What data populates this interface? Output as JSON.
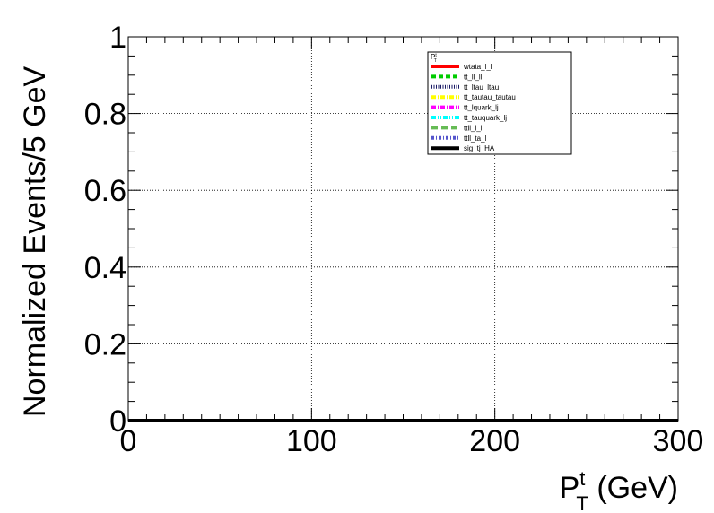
{
  "chart_data": {
    "type": "line",
    "title": "",
    "xlabel": {
      "main": "P",
      "sup": "t",
      "sub": "T",
      "unit": " (GeV)"
    },
    "ylabel": "Normalized Events/5 GeV",
    "xlim": [
      0,
      300
    ],
    "ylim": [
      0,
      1
    ],
    "x_ticks": [
      0,
      100,
      200,
      300
    ],
    "x_tick_labels": [
      "0",
      "100",
      "200",
      "300"
    ],
    "y_ticks": [
      0,
      0.2,
      0.4,
      0.6,
      0.8,
      1
    ],
    "y_tick_labels": [
      "0",
      "0.2",
      "0.4",
      "0.6",
      "0.8",
      "1"
    ],
    "grid": true,
    "legend": {
      "placement": "top-right",
      "header": {
        "main": "P",
        "sup": "t",
        "sub": "T"
      },
      "entries": [
        {
          "name": "wtata_l_l",
          "color": "#ff0000",
          "style": "solid"
        },
        {
          "name": "tt_ll_ll",
          "color": "#00cc00",
          "style": "dashed"
        },
        {
          "name": "tt_ltau_ltau",
          "color": "#1a1a66",
          "style": "dotted"
        },
        {
          "name": "tt_tautau_tautau",
          "color": "#ffff00",
          "style": "dashdot"
        },
        {
          "name": "tt_lquark_lj",
          "color": "#ff00ff",
          "style": "dashdot"
        },
        {
          "name": "tt_tauquark_lj",
          "color": "#00ffff",
          "style": "dashdotdot"
        },
        {
          "name": "ttll_l_l",
          "color": "#66bb55",
          "style": "longdash"
        },
        {
          "name": "ttll_ta_l",
          "color": "#5555cc",
          "style": "mixed"
        },
        {
          "name": "sig_tj_HA",
          "color": "#000000",
          "style": "solid"
        }
      ]
    },
    "series": [
      {
        "name": "wtata_l_l",
        "x": [
          0,
          300
        ],
        "y": [
          0,
          0
        ]
      },
      {
        "name": "tt_ll_ll",
        "x": [
          0,
          300
        ],
        "y": [
          0,
          0
        ]
      },
      {
        "name": "tt_ltau_ltau",
        "x": [
          0,
          300
        ],
        "y": [
          0,
          0
        ]
      },
      {
        "name": "tt_tautau_tautau",
        "x": [
          0,
          300
        ],
        "y": [
          0,
          0
        ]
      },
      {
        "name": "tt_lquark_lj",
        "x": [
          0,
          300
        ],
        "y": [
          0,
          0
        ]
      },
      {
        "name": "tt_tauquark_lj",
        "x": [
          0,
          300
        ],
        "y": [
          0,
          0
        ]
      },
      {
        "name": "ttll_l_l",
        "x": [
          0,
          300
        ],
        "y": [
          0,
          0
        ]
      },
      {
        "name": "ttll_ta_l",
        "x": [
          0,
          300
        ],
        "y": [
          0,
          0
        ]
      },
      {
        "name": "sig_tj_HA",
        "x": [
          0,
          300
        ],
        "y": [
          0,
          0
        ]
      }
    ]
  }
}
